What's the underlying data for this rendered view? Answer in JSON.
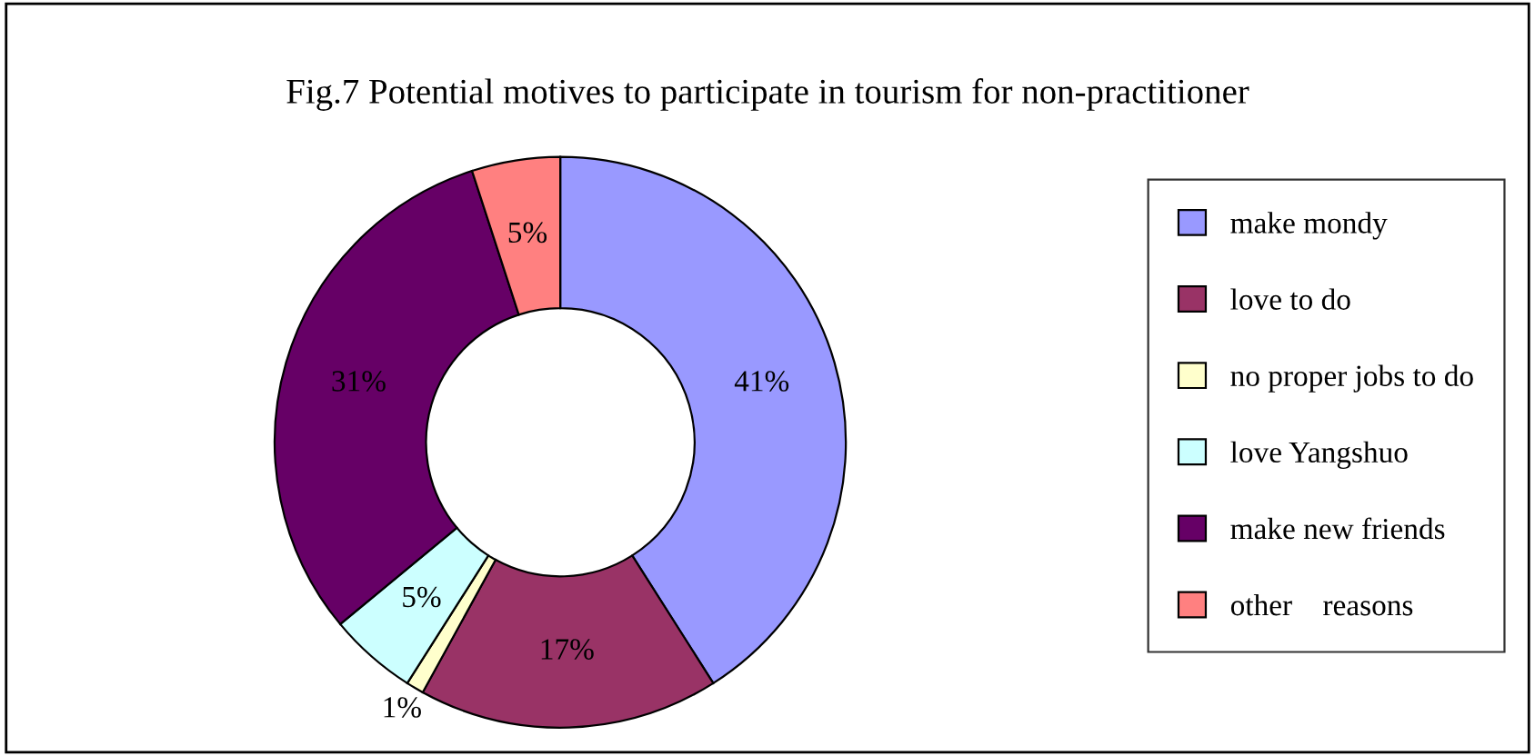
{
  "chart_data": {
    "type": "donut",
    "title": "Fig.7 Potential motives to participate in tourism for non-practitioner",
    "categories": [
      "make mondy",
      "love to do",
      "no proper jobs to do",
      "love Yangshuo",
      "make new friends",
      "other    reasons"
    ],
    "values": [
      41,
      17,
      1,
      5,
      31,
      5
    ],
    "value_labels": [
      "41%",
      "17%",
      "1%",
      "5%",
      "31%",
      "5%"
    ],
    "colors": [
      "#9999ff",
      "#993366",
      "#ffffcc",
      "#ccffff",
      "#660066",
      "#ff8080"
    ],
    "legend": "right"
  }
}
